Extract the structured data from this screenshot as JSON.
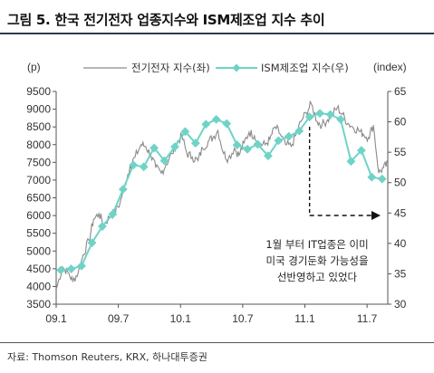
{
  "header": {
    "title": "그림 5. 한국 전기전자 업종지수와 ISM제조업 지수 추이"
  },
  "footer": {
    "source": "자료: Thomson Reuters, KRX, 하나대투증권"
  },
  "chart_data": {
    "type": "line",
    "left_unit": "(p)",
    "right_unit": "(index)",
    "x_ticks": [
      "09.1",
      "09.7",
      "10.1",
      "10.7",
      "11.1",
      "11.7"
    ],
    "x_range": [
      "2009-01",
      "2011-09"
    ],
    "left_axis": {
      "ylim": [
        3500,
        9500
      ],
      "ticks": [
        3500,
        4000,
        4500,
        5000,
        5500,
        6000,
        6500,
        7000,
        7500,
        8000,
        8500,
        9000,
        9500
      ]
    },
    "right_axis": {
      "ylim": [
        30,
        65
      ],
      "ticks": [
        30,
        35,
        40,
        45,
        50,
        55,
        60,
        65
      ]
    },
    "legend_position": "top",
    "grid": false,
    "series": [
      {
        "name": "전기전자 지수(좌)",
        "axis": "left",
        "color": "#8a8a8a",
        "x": [
          "2009-01-02",
          "2009-01-20",
          "2009-02-05",
          "2009-02-20",
          "2009-03-05",
          "2009-03-20",
          "2009-04-06",
          "2009-04-20",
          "2009-05-05",
          "2009-05-20",
          "2009-06-05",
          "2009-06-20",
          "2009-07-06",
          "2009-07-20",
          "2009-08-05",
          "2009-08-20",
          "2009-09-07",
          "2009-09-21",
          "2009-10-05",
          "2009-10-20",
          "2009-11-05",
          "2009-11-20",
          "2009-12-07",
          "2009-12-21",
          "2010-01-05",
          "2010-01-20",
          "2010-02-05",
          "2010-02-22",
          "2010-03-05",
          "2010-03-22",
          "2010-04-05",
          "2010-04-20",
          "2010-05-06",
          "2010-05-20",
          "2010-06-07",
          "2010-06-21",
          "2010-07-05",
          "2010-07-20",
          "2010-08-05",
          "2010-08-20",
          "2010-09-06",
          "2010-09-20",
          "2010-10-05",
          "2010-10-20",
          "2010-11-05",
          "2010-11-22",
          "2010-12-06",
          "2010-12-20",
          "2011-01-05",
          "2011-01-20",
          "2011-02-07",
          "2011-02-21",
          "2011-03-07",
          "2011-03-21",
          "2011-04-05",
          "2011-04-20",
          "2011-05-06",
          "2011-05-20",
          "2011-06-07",
          "2011-06-20",
          "2011-07-05",
          "2011-07-20",
          "2011-08-05",
          "2011-08-19",
          "2011-09-01"
        ],
        "values": [
          3950,
          4550,
          4400,
          4150,
          4400,
          4900,
          5300,
          5900,
          6050,
          5750,
          5950,
          6100,
          6350,
          6850,
          7400,
          7650,
          8000,
          7950,
          7700,
          7350,
          7200,
          7450,
          7750,
          8050,
          8250,
          7750,
          7650,
          7550,
          7900,
          8100,
          8200,
          8400,
          7750,
          7600,
          7900,
          7700,
          8050,
          8350,
          8250,
          8000,
          8000,
          8150,
          8500,
          8300,
          8000,
          7950,
          8300,
          8650,
          8900,
          9150,
          8650,
          8550,
          8700,
          8850,
          9050,
          8850,
          8600,
          8500,
          8400,
          8300,
          8200,
          8550,
          7200,
          7350,
          7450
        ]
      },
      {
        "name": "ISM제조업 지수(우)",
        "axis": "right",
        "color": "#6fd3c7",
        "x": [
          "2009-01",
          "2009-02",
          "2009-03",
          "2009-04",
          "2009-05",
          "2009-06",
          "2009-07",
          "2009-08",
          "2009-09",
          "2009-10",
          "2009-11",
          "2009-12",
          "2010-01",
          "2010-02",
          "2010-03",
          "2010-04",
          "2010-05",
          "2010-06",
          "2010-07",
          "2010-08",
          "2010-09",
          "2010-10",
          "2010-11",
          "2010-12",
          "2011-01",
          "2011-02",
          "2011-03",
          "2011-04",
          "2011-05",
          "2011-06",
          "2011-07",
          "2011-08"
        ],
        "values": [
          35.6,
          35.8,
          36.3,
          40.1,
          42.8,
          44.8,
          48.9,
          52.9,
          52.6,
          55.7,
          53.6,
          55.9,
          58.4,
          56.5,
          59.6,
          60.4,
          59.7,
          56.2,
          55.5,
          56.3,
          54.4,
          56.9,
          57.6,
          58.5,
          60.8,
          61.4,
          61.2,
          60.4,
          53.5,
          55.3,
          50.9,
          50.6
        ]
      }
    ],
    "annotation": {
      "lines": [
        "1월 부터 IT업종은 이미",
        "미국 경기둔화 가능성을",
        "선반영하고 있었다"
      ]
    }
  }
}
